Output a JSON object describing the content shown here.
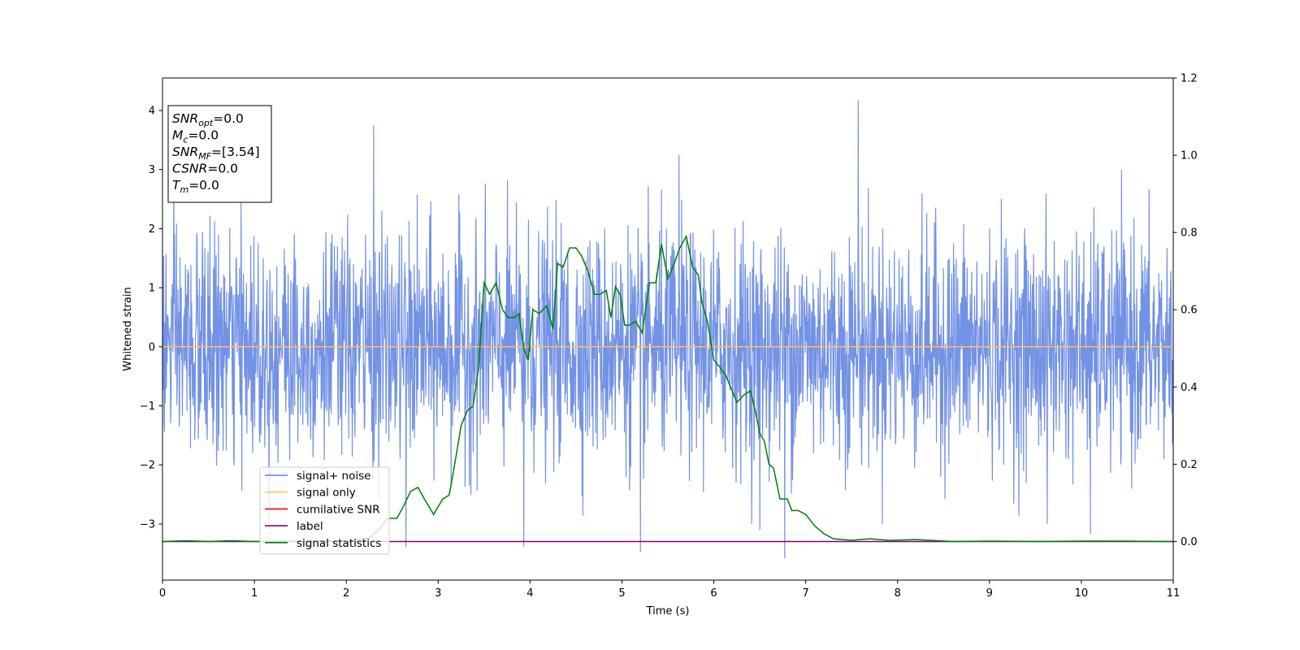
{
  "chart_data": {
    "type": "line",
    "xlabel": "Time (s)",
    "ylabel": "Whitened strain",
    "xlim": [
      0,
      11
    ],
    "ylim": [
      -3.95,
      4.55
    ],
    "y2lim": [
      -0.1,
      1.2
    ],
    "xticks": [
      "0",
      "1",
      "2",
      "3",
      "4",
      "5",
      "6",
      "7",
      "8",
      "9",
      "10",
      "11"
    ],
    "yticks": [
      "−3",
      "−2",
      "−1",
      "0",
      "1",
      "2",
      "3",
      "4"
    ],
    "y2ticks": [
      "0.0",
      "0.2",
      "0.4",
      "0.6",
      "0.8",
      "1.0",
      "1.2"
    ],
    "grid": false,
    "legend": {
      "placement": "lower-left",
      "entries": [
        {
          "label": "signal+ noise",
          "color": "#5b7fe0"
        },
        {
          "label": "signal only",
          "color": "#ffbf5f"
        },
        {
          "label": "cumilative SNR",
          "color": "#ff0000"
        },
        {
          "label": "label",
          "color": "#800080"
        },
        {
          "label": "signal statistics",
          "color": "#008000"
        }
      ]
    },
    "annotation": {
      "lines": [
        {
          "sym": "SNR",
          "sub": "opt",
          "val": "=0.0"
        },
        {
          "sym": "M",
          "sub": "c",
          "val": "=0.0"
        },
        {
          "sym": "SNR",
          "sub": "MF",
          "val": "=[3.54]"
        },
        {
          "sym": "CSNR",
          "sub": "",
          "val": "=0.0"
        },
        {
          "sym": "T",
          "sub": "m",
          "val": "=0.0"
        }
      ]
    },
    "series": [
      {
        "name": "signal+ noise",
        "axis": "left",
        "color": "#5b7fe0",
        "kind": "noise",
        "x_range": [
          0,
          11
        ],
        "amplitude_sd": 1.0,
        "peaks": [
          [
            2.3,
            3.75
          ],
          [
            5.62,
            3.25
          ],
          [
            7.57,
            4.17
          ],
          [
            6.77,
            -3.58
          ],
          [
            5.2,
            -3.47
          ],
          [
            3.93,
            -3.38
          ],
          [
            2.65,
            -3.39
          ],
          [
            10.1,
            -3.17
          ],
          [
            6.5,
            -3.1
          ],
          [
            9.63,
            -3.0
          ]
        ]
      },
      {
        "name": "signal only",
        "axis": "left",
        "color": "#ffbf5f",
        "x": [
          0,
          11
        ],
        "y": [
          0,
          0
        ]
      },
      {
        "name": "cumilative SNR",
        "axis": "right",
        "color": "#ff0000",
        "x": [],
        "y": []
      },
      {
        "name": "label",
        "axis": "right",
        "color": "#800080",
        "x": [
          0,
          11
        ],
        "y": [
          0,
          0
        ]
      },
      {
        "name": "signal statistics",
        "axis": "right",
        "color": "#008000",
        "x": [
          0,
          0.25,
          0.5,
          0.75,
          1.0,
          1.25,
          1.5,
          1.75,
          2.0,
          2.25,
          2.35,
          2.45,
          2.55,
          2.62,
          2.7,
          2.78,
          2.85,
          2.95,
          3.05,
          3.12,
          3.18,
          3.25,
          3.32,
          3.38,
          3.44,
          3.5,
          3.56,
          3.63,
          3.7,
          3.76,
          3.83,
          3.88,
          3.93,
          3.98,
          4.03,
          4.1,
          4.18,
          4.25,
          4.3,
          4.36,
          4.43,
          4.5,
          4.56,
          4.63,
          4.7,
          4.76,
          4.83,
          4.88,
          4.93,
          4.98,
          5.03,
          5.08,
          5.15,
          5.22,
          5.3,
          5.37,
          5.43,
          5.5,
          5.57,
          5.63,
          5.7,
          5.77,
          5.83,
          5.87,
          5.93,
          6.0,
          6.07,
          6.13,
          6.2,
          6.25,
          6.33,
          6.4,
          6.45,
          6.5,
          6.55,
          6.6,
          6.65,
          6.72,
          6.8,
          6.85,
          6.92,
          7.0,
          7.1,
          7.2,
          7.3,
          7.5,
          7.7,
          7.9,
          8.2,
          8.6,
          9.0,
          9.5,
          10.0,
          10.5,
          11.0
        ],
        "y": [
          0.0,
          0.002,
          0.0,
          0.002,
          0.0,
          0.001,
          0.0,
          0.002,
          0.0,
          0.01,
          0.03,
          0.06,
          0.06,
          0.09,
          0.13,
          0.14,
          0.11,
          0.07,
          0.11,
          0.12,
          0.2,
          0.3,
          0.34,
          0.35,
          0.45,
          0.67,
          0.64,
          0.67,
          0.6,
          0.58,
          0.58,
          0.59,
          0.5,
          0.47,
          0.6,
          0.59,
          0.61,
          0.55,
          0.72,
          0.71,
          0.76,
          0.76,
          0.74,
          0.7,
          0.64,
          0.64,
          0.65,
          0.58,
          0.66,
          0.64,
          0.56,
          0.56,
          0.57,
          0.54,
          0.67,
          0.67,
          0.77,
          0.68,
          0.72,
          0.76,
          0.79,
          0.71,
          0.69,
          0.62,
          0.57,
          0.47,
          0.45,
          0.43,
          0.39,
          0.36,
          0.38,
          0.39,
          0.34,
          0.28,
          0.26,
          0.2,
          0.19,
          0.11,
          0.11,
          0.08,
          0.08,
          0.07,
          0.04,
          0.02,
          0.007,
          0.003,
          0.007,
          0.003,
          0.005,
          0.0,
          0.001,
          0.0,
          0.001,
          0.001,
          0.0
        ]
      }
    ]
  }
}
